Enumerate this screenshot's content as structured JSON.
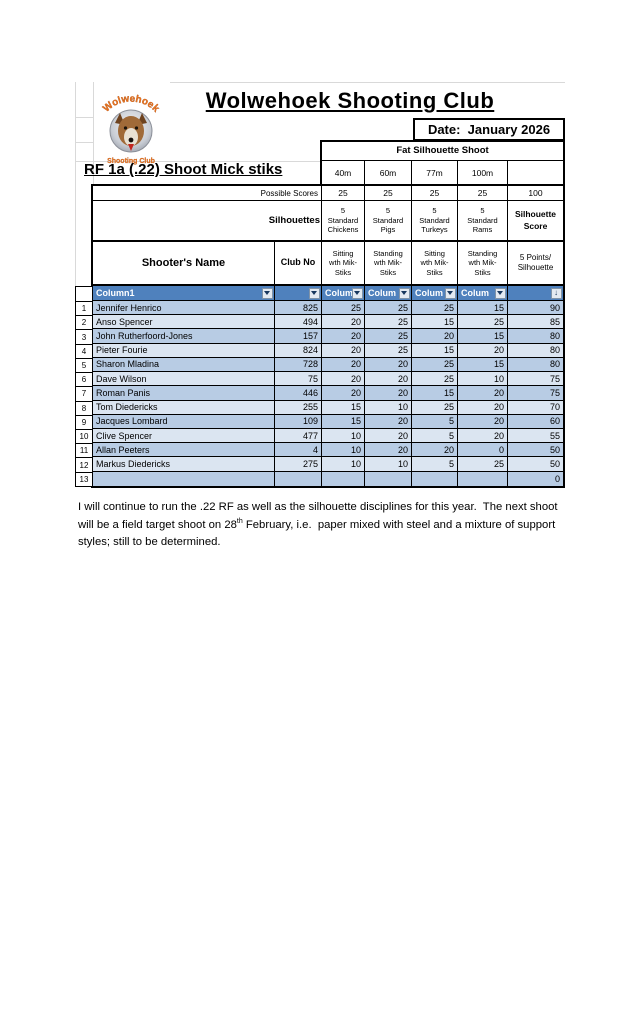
{
  "header": {
    "logo_top": "Wolwehoek",
    "logo_bottom": "Shooting Club",
    "title": "Wolwehoek Shooting Club",
    "date_label": "Date:  January 2026",
    "event_title": "Fat Silhouette Shoot",
    "discipline_title": "RF 1a (.22) Shoot Mick stiks"
  },
  "scoreboard": {
    "distances": [
      "40m",
      "60m",
      "77m",
      "100m"
    ],
    "possible_scores_label": "Possible Scores",
    "possible_scores": [
      "25",
      "25",
      "25",
      "25",
      "100"
    ],
    "silhouettes_label": "Silhouettes",
    "silhouette_types": [
      "5\nStandard\nChickens",
      "5\nStandard\nPigs",
      "5\nStandard\nTurkeys",
      "5\nStandard\nRams"
    ],
    "silhouette_score_label": "Silhouette\nScore",
    "name_header": "Shooter's Name",
    "club_header": "Club No",
    "position_headers": [
      "Sitting\nwth Mik-\nStiks",
      "Standing\nwth Mik-\nStiks",
      "Sitting\nwth Mik-\nStiks",
      "Standing\nwth Mik-\nStiks"
    ],
    "points_label": "5 Points/\nSilhouette",
    "filter_header": {
      "column1": "Column1",
      "truncated": "Colum",
      "sort_glyph": "↓"
    },
    "rows": [
      {
        "num": "1",
        "name": "Jennifer Henrico",
        "club": "825",
        "s1": "25",
        "s2": "25",
        "s3": "25",
        "s4": "15",
        "total": "90"
      },
      {
        "num": "2",
        "name": "Anso Spencer",
        "club": "494",
        "s1": "20",
        "s2": "25",
        "s3": "15",
        "s4": "25",
        "total": "85"
      },
      {
        "num": "3",
        "name": "John Rutherfoord-Jones",
        "club": "157",
        "s1": "20",
        "s2": "25",
        "s3": "20",
        "s4": "15",
        "total": "80"
      },
      {
        "num": "4",
        "name": "Pieter Fourie",
        "club": "824",
        "s1": "20",
        "s2": "25",
        "s3": "15",
        "s4": "20",
        "total": "80"
      },
      {
        "num": "5",
        "name": "Sharon Mladina",
        "club": "728",
        "s1": "20",
        "s2": "20",
        "s3": "25",
        "s4": "15",
        "total": "80"
      },
      {
        "num": "6",
        "name": "Dave Wilson",
        "club": "75",
        "s1": "20",
        "s2": "20",
        "s3": "25",
        "s4": "10",
        "total": "75"
      },
      {
        "num": "7",
        "name": "Roman Panis",
        "club": "446",
        "s1": "20",
        "s2": "20",
        "s3": "15",
        "s4": "20",
        "total": "75"
      },
      {
        "num": "8",
        "name": "Tom Diedericks",
        "club": "255",
        "s1": "15",
        "s2": "10",
        "s3": "25",
        "s4": "20",
        "total": "70"
      },
      {
        "num": "9",
        "name": "Jacques Lombard",
        "club": "109",
        "s1": "15",
        "s2": "20",
        "s3": "5",
        "s4": "20",
        "total": "60"
      },
      {
        "num": "10",
        "name": "Clive Spencer",
        "club": "477",
        "s1": "10",
        "s2": "20",
        "s3": "5",
        "s4": "20",
        "total": "55"
      },
      {
        "num": "11",
        "name": "Allan Peeters",
        "club": "4",
        "s1": "10",
        "s2": "20",
        "s3": "20",
        "s4": "0",
        "total": "50"
      },
      {
        "num": "12",
        "name": "Markus Diedericks",
        "club": "275",
        "s1": "10",
        "s2": "10",
        "s3": "5",
        "s4": "25",
        "total": "50"
      },
      {
        "num": "13",
        "name": "",
        "club": "",
        "s1": "",
        "s2": "",
        "s3": "",
        "s4": "",
        "total": "0"
      }
    ]
  },
  "footer_note": {
    "before_sup": "I will continue to run the .22 RF as well as the silhouette disciplines for this year.  The next shoot will be a field target shoot on 28",
    "sup": "th",
    "after_sup": " February, i.e.  paper mixed with steel and a mixture of support styles; still to be determined."
  },
  "colors": {
    "table_header_blue": "#4f81bd",
    "band_dark": "#b8cce4",
    "band_light": "#dbe5f1",
    "logo_orange": "#f07820"
  }
}
